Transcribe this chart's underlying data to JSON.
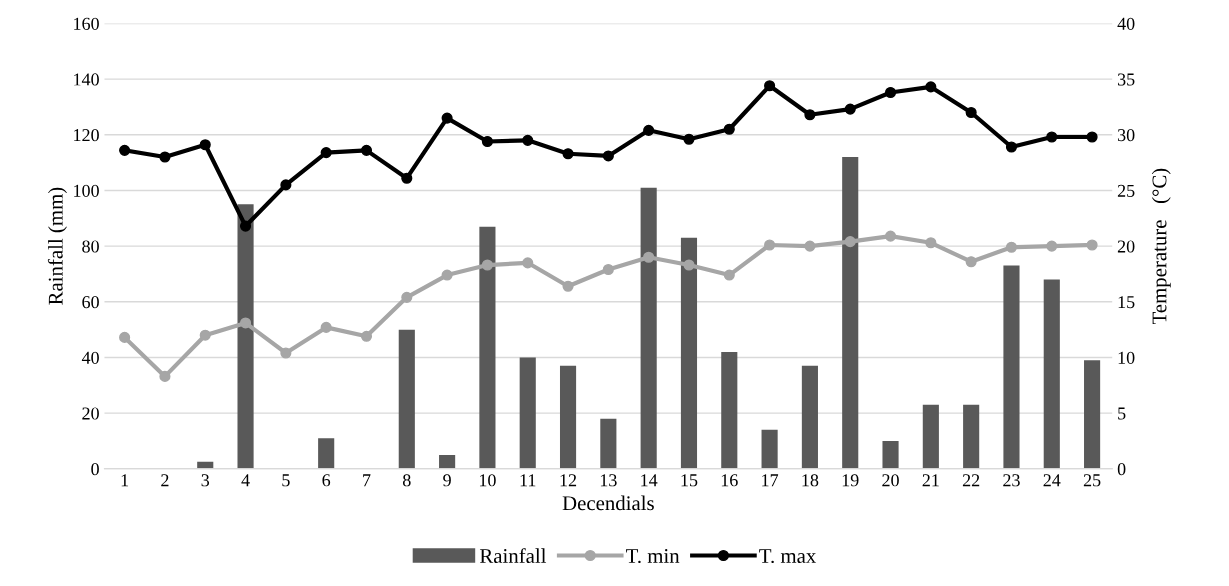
{
  "chart_data": {
    "type": "bar",
    "xlabel": "Decendials",
    "ylabel": "Rainfall (mm)",
    "y2label": "Temperature   (°C)",
    "categories": [
      "1",
      "2",
      "3",
      "4",
      "5",
      "6",
      "7",
      "8",
      "9",
      "10",
      "11",
      "12",
      "13",
      "14",
      "15",
      "16",
      "17",
      "18",
      "19",
      "20",
      "21",
      "22",
      "23",
      "24",
      "25"
    ],
    "series": [
      {
        "name": "Rainfall",
        "color": "#595959",
        "values": [
          0,
          0,
          2.5,
          95,
          0,
          11,
          0,
          50,
          5,
          87,
          40,
          37,
          18,
          101,
          83,
          42,
          14,
          37,
          112,
          10,
          23,
          23,
          73,
          68,
          39
        ]
      },
      {
        "name": "T. min",
        "type": "line",
        "axis": "y2",
        "color": "#a6a6a6",
        "marker": "circle",
        "values": [
          11.8,
          8.3,
          12,
          13.1,
          10.4,
          12.7,
          11.9,
          15.4,
          17.4,
          18.3,
          18.5,
          16.4,
          17.9,
          19,
          18.3,
          17.4,
          20.1,
          20,
          20.4,
          20.9,
          20.3,
          18.6,
          19.9,
          20,
          20.1
        ]
      },
      {
        "name": "T. max",
        "type": "line",
        "axis": "y2",
        "color": "#000000",
        "marker": "circle",
        "values": [
          28.6,
          28,
          29.1,
          21.8,
          25.5,
          28.4,
          28.6,
          26.1,
          31.5,
          29.4,
          29.5,
          28.3,
          28.1,
          30.4,
          29.6,
          30.5,
          34.4,
          31.8,
          32.3,
          33.8,
          34.3,
          32,
          28.9,
          29.8,
          29.8
        ]
      }
    ],
    "ylim": [
      0,
      160
    ],
    "yticks": [
      0,
      20,
      40,
      60,
      80,
      100,
      120,
      140,
      160
    ],
    "y2lim": [
      0,
      40
    ],
    "y2ticks": [
      0,
      5,
      10,
      15,
      20,
      25,
      30,
      35,
      40
    ],
    "grid": "y",
    "legend": "bottom"
  }
}
